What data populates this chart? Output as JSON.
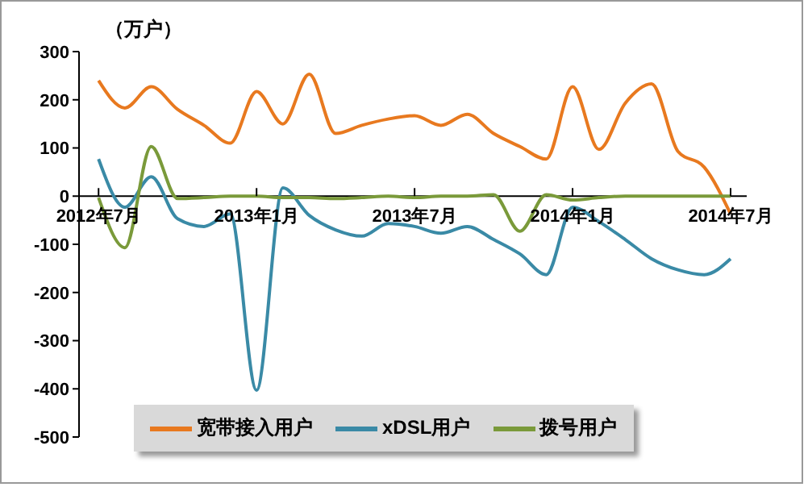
{
  "chart_data": {
    "type": "line",
    "ylabel": "（万户）",
    "x": [
      "2012-07",
      "2012-08",
      "2012-09",
      "2012-10",
      "2012-11",
      "2012-12",
      "2013-01",
      "2013-02",
      "2013-03",
      "2013-04",
      "2013-05",
      "2013-06",
      "2013-07",
      "2013-08",
      "2013-09",
      "2013-10",
      "2013-11",
      "2013-12",
      "2014-01",
      "2014-02",
      "2014-03",
      "2014-04",
      "2014-05",
      "2014-06",
      "2014-07"
    ],
    "series": [
      {
        "name": "宽带接入用户",
        "color": "#e8791f",
        "values": [
          240,
          183,
          227,
          180,
          147,
          110,
          217,
          150,
          253,
          130,
          147,
          160,
          167,
          147,
          170,
          130,
          103,
          77,
          227,
          97,
          193,
          233,
          93,
          60,
          -37
        ]
      },
      {
        "name": "xDSL用户",
        "color": "#3a8aa6",
        "values": [
          77,
          -23,
          40,
          -47,
          -63,
          -37,
          -403,
          17,
          -40,
          -70,
          -83,
          -57,
          -63,
          -77,
          -63,
          -90,
          -120,
          -163,
          -23,
          -53,
          -90,
          -130,
          -153,
          -163,
          -130
        ]
      },
      {
        "name": "拨号用户",
        "color": "#7a9a3a",
        "values": [
          -3,
          -107,
          103,
          -5,
          -3,
          0,
          0,
          -3,
          -3,
          -5,
          -3,
          0,
          -3,
          0,
          0,
          3,
          -73,
          3,
          -8,
          -3,
          0,
          0,
          0,
          0,
          0
        ]
      }
    ],
    "ylim": [
      -500,
      300
    ],
    "yticks": [
      -500,
      -400,
      -300,
      -200,
      -100,
      0,
      100,
      200,
      300
    ],
    "xlim": [
      "2012-06-09",
      "2014-07-20"
    ],
    "xticks": [
      {
        "value": "2012-07",
        "label": "2012年7月"
      },
      {
        "value": "2013-01",
        "label": "2013年1月"
      },
      {
        "value": "2013-07",
        "label": "2013年7月"
      },
      {
        "value": "2014-01",
        "label": "2014年1月"
      },
      {
        "value": "2014-07",
        "label": "2014年7月"
      }
    ],
    "grid": false,
    "legend": "bottom",
    "marker": "none",
    "line_style": "solid"
  }
}
